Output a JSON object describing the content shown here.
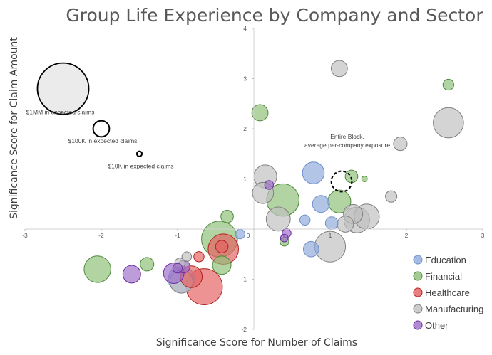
{
  "chart_data": {
    "type": "scatter",
    "title": "Group Life Experience by Company and Sector",
    "xlabel": "Significance Score for Number of Claims",
    "ylabel": "Significance Score for Claim Amount",
    "xlim": [
      -3,
      3
    ],
    "ylim": [
      -2,
      4
    ],
    "x_ticks": [
      "-3",
      "-2",
      "-1",
      "0",
      "1",
      "2",
      "3"
    ],
    "y_ticks": [
      "-2",
      "-1",
      "0",
      "1",
      "2",
      "3",
      "4"
    ],
    "grid": false,
    "legend_position": "right",
    "bubble_size": "expected claims",
    "size_key": [
      {
        "label": "$1MM in expected claims",
        "x": -2.5,
        "y": 2.8,
        "expected_claims": 1000000
      },
      {
        "label": "$100K in expected claims",
        "x": -2.0,
        "y": 2.0,
        "expected_claims": 100000
      },
      {
        "label": "$10K in expected claims",
        "x": -1.5,
        "y": 1.5,
        "expected_claims": 10000
      }
    ],
    "reference": {
      "label_line1": "Entire Block,",
      "label_line2": "average per-company exposure",
      "x": 1.15,
      "y": 0.95,
      "expected_claims": 160000
    },
    "series": [
      {
        "name": "Education",
        "color": "#8FAADC",
        "border": "#6F8FCA",
        "points": [
          {
            "x": 0.78,
            "y": 1.12,
            "size": 180000
          },
          {
            "x": 0.88,
            "y": 0.5,
            "size": 110000
          },
          {
            "x": 0.67,
            "y": 0.18,
            "size": 40000
          },
          {
            "x": 0.75,
            "y": -0.4,
            "size": 90000
          },
          {
            "x": 1.02,
            "y": 0.12,
            "size": 60000
          },
          {
            "x": -0.18,
            "y": -0.1,
            "size": 35000
          },
          {
            "x": -0.95,
            "y": -1.0,
            "size": 260000
          }
        ]
      },
      {
        "name": "Financial",
        "color": "#8DBF77",
        "border": "#4E8A3C",
        "points": [
          {
            "x": 2.55,
            "y": 2.88,
            "size": 45000
          },
          {
            "x": 0.08,
            "y": 2.32,
            "size": 100000
          },
          {
            "x": 1.28,
            "y": 1.05,
            "size": 60000
          },
          {
            "x": 1.45,
            "y": 1.0,
            "size": 12000
          },
          {
            "x": 1.12,
            "y": 0.55,
            "size": 200000
          },
          {
            "x": 0.38,
            "y": 0.58,
            "size": 400000
          },
          {
            "x": -0.35,
            "y": 0.25,
            "size": 60000
          },
          {
            "x": -0.45,
            "y": -0.2,
            "size": 490000
          },
          {
            "x": -0.42,
            "y": -0.72,
            "size": 130000
          },
          {
            "x": -1.4,
            "y": -0.7,
            "size": 70000
          },
          {
            "x": -2.05,
            "y": -0.8,
            "size": 270000
          },
          {
            "x": 0.4,
            "y": -0.25,
            "size": 30000
          }
        ]
      },
      {
        "name": "Healthcare",
        "color": "#E46060",
        "border": "#B32020",
        "points": [
          {
            "x": -0.4,
            "y": -0.4,
            "size": 350000
          },
          {
            "x": -0.42,
            "y": -0.35,
            "size": 60000
          },
          {
            "x": -0.65,
            "y": -1.15,
            "size": 500000
          },
          {
            "x": -0.82,
            "y": -0.95,
            "size": 180000
          },
          {
            "x": -0.72,
            "y": -0.55,
            "size": 40000
          }
        ]
      },
      {
        "name": "Manufacturing",
        "color": "#BFBFBF",
        "border": "#7F7F7F",
        "points": [
          {
            "x": 1.12,
            "y": 3.2,
            "size": 100000
          },
          {
            "x": 2.55,
            "y": 2.12,
            "size": 350000
          },
          {
            "x": 1.92,
            "y": 1.7,
            "size": 70000
          },
          {
            "x": 1.8,
            "y": 0.65,
            "size": 50000
          },
          {
            "x": 0.15,
            "y": 1.05,
            "size": 200000
          },
          {
            "x": 0.12,
            "y": 0.72,
            "size": 170000
          },
          {
            "x": 0.32,
            "y": 0.2,
            "size": 220000
          },
          {
            "x": 1.0,
            "y": -0.35,
            "size": 360000
          },
          {
            "x": 1.3,
            "y": 0.3,
            "size": 140000
          },
          {
            "x": 1.35,
            "y": 0.18,
            "size": 250000
          },
          {
            "x": 1.48,
            "y": 0.25,
            "size": 240000
          },
          {
            "x": 1.2,
            "y": 0.1,
            "size": 100000
          },
          {
            "x": -0.88,
            "y": -0.55,
            "size": 35000
          },
          {
            "x": -0.97,
            "y": -0.68,
            "size": 40000
          },
          {
            "x": -0.95,
            "y": -1.05,
            "size": 200000
          }
        ]
      },
      {
        "name": "Other",
        "color": "#9E6DC9",
        "border": "#6A2F9E",
        "points": [
          {
            "x": 0.2,
            "y": 0.88,
            "size": 30000
          },
          {
            "x": 0.43,
            "y": -0.08,
            "size": 30000
          },
          {
            "x": 0.4,
            "y": -0.18,
            "size": 22000
          },
          {
            "x": -1.6,
            "y": -0.9,
            "size": 120000
          },
          {
            "x": -1.05,
            "y": -0.88,
            "size": 160000
          },
          {
            "x": -1.0,
            "y": -0.78,
            "size": 35000
          },
          {
            "x": -0.92,
            "y": -0.75,
            "size": 60000
          }
        ]
      }
    ]
  }
}
